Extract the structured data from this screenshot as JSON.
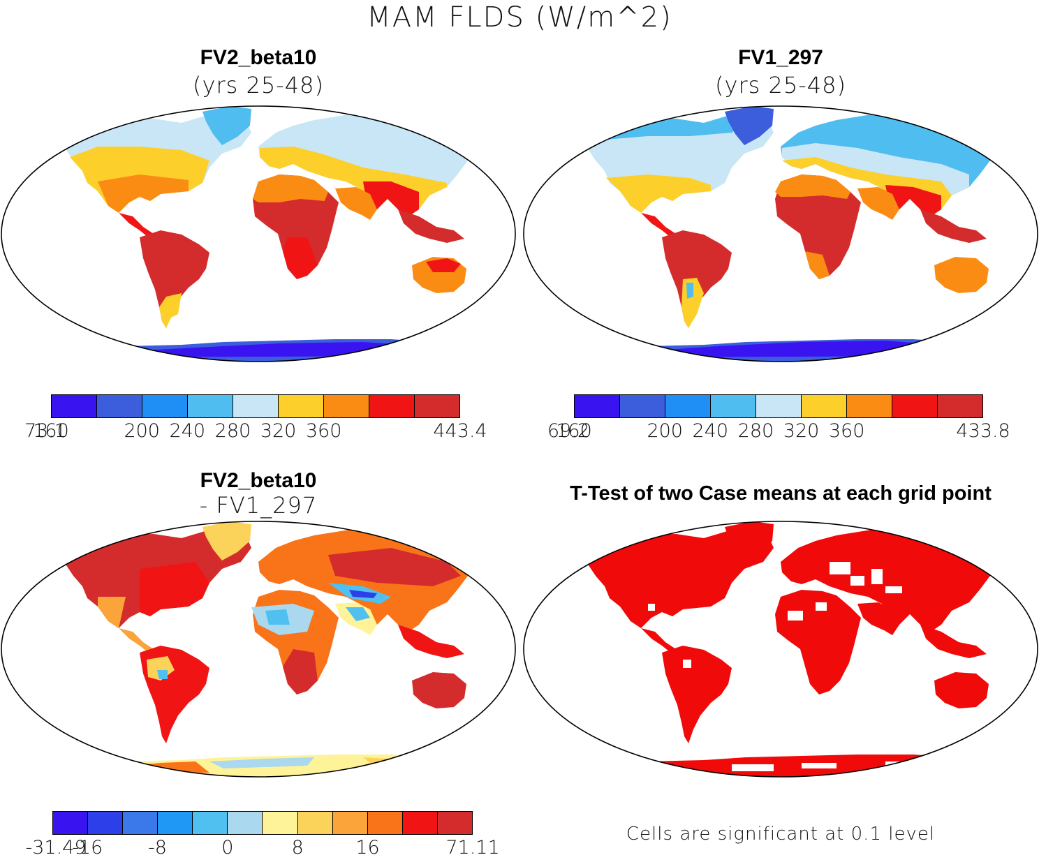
{
  "figure": {
    "title": "MAM FLDS (W/m^2)"
  },
  "panels": [
    {
      "id": "fv2",
      "title": "FV2_beta10",
      "subtitle": "(yrs 25-48)",
      "colorbar": {
        "colors": [
          "#3a14f0",
          "#3c5ddc",
          "#1f8ff5",
          "#4fbdef",
          "#c8e6f5",
          "#fccf2b",
          "#fb8c13",
          "#f01414",
          "#d42c2c"
        ],
        "labels": [
          "73.1",
          "160",
          "200",
          "240",
          "280",
          "320",
          "360",
          "443.4"
        ]
      }
    },
    {
      "id": "fv1",
      "title": "FV1_297",
      "subtitle": "(yrs 25-48)",
      "colorbar": {
        "colors": [
          "#3a14f0",
          "#3c5ddc",
          "#1f8ff5",
          "#4fbdef",
          "#c8e6f5",
          "#fccf2b",
          "#fb8c13",
          "#f01414",
          "#d42c2c"
        ],
        "labels": [
          "69.2",
          "160",
          "200",
          "240",
          "280",
          "320",
          "360",
          "433.8"
        ]
      }
    },
    {
      "id": "diff",
      "title": "FV2_beta10",
      "subtitle": "- FV1_297",
      "colorbar": {
        "colors": [
          "#3a14f0",
          "#2d3fe8",
          "#3b78ea",
          "#1f98f5",
          "#4fc0ef",
          "#aad8ee",
          "#fff399",
          "#fcd35a",
          "#fba43a",
          "#f97418",
          "#f01414",
          "#d42c2c"
        ],
        "labels": [
          "-31.49",
          "-16",
          "-8",
          "0",
          "8",
          "16",
          "71.11"
        ]
      }
    },
    {
      "id": "ttest",
      "title": "T-Test of two Case means at each grid point",
      "footnote": "Cells are significant at 0.1 level",
      "sig_color": "#f00a0a"
    }
  ]
}
